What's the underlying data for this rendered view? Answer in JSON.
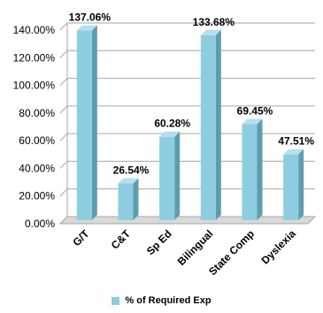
{
  "chart_data": {
    "type": "bar",
    "categories": [
      "G/T",
      "C&T",
      "Sp Ed",
      "Bilingual",
      "State Comp",
      "Dyslexia"
    ],
    "series": [
      {
        "name": "% of Required Exp",
        "values": [
          137.06,
          26.54,
          60.28,
          133.68,
          69.45,
          47.51
        ],
        "labels": [
          "137.06%",
          "26.54%",
          "60.28%",
          "133.68%",
          "69.45%",
          "47.51%"
        ]
      }
    ],
    "ylim": [
      0,
      140
    ],
    "yticks": [
      "0.00%",
      "20.00%",
      "40.00%",
      "60.00%",
      "80.00%",
      "100.00%",
      "120.00%",
      "140.00%"
    ],
    "grid": true,
    "legend_position": "bottom",
    "style": "3d-column",
    "colors": {
      "bar_front": "#8ECDE0",
      "bar_side": "#5E9CAF",
      "bar_top": "#B4E0EC",
      "gridline": "#A6A6A6",
      "floor": "#D9D9D9"
    }
  }
}
